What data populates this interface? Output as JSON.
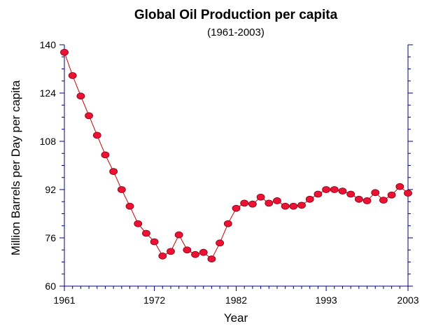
{
  "chart_data": {
    "type": "line",
    "title": "Global Oil Production per capita",
    "subtitle": "(1961-2003)",
    "xlabel": "Year",
    "ylabel": "Million Barrels per Day per capita",
    "xlim": [
      1961,
      2003
    ],
    "ylim": [
      60,
      140
    ],
    "x_tick_labels": [
      {
        "value": 1961,
        "label": "1961"
      },
      {
        "value": 1972,
        "label": "1972"
      },
      {
        "value": 1982,
        "label": "1982"
      },
      {
        "value": 1993,
        "label": "1993"
      },
      {
        "value": 2003,
        "label": "2003"
      }
    ],
    "y_tick_labels": [
      {
        "value": 60,
        "label": "60"
      },
      {
        "value": 76,
        "label": "76"
      },
      {
        "value": 92,
        "label": "92"
      },
      {
        "value": 108,
        "label": "108"
      },
      {
        "value": 124,
        "label": "124"
      },
      {
        "value": 140,
        "label": "140"
      }
    ],
    "grid": false,
    "series": [
      {
        "name": "Oil production per capita",
        "line_color": "#cc0000",
        "marker_color": "#ee1133",
        "x": [
          1961,
          1962,
          1963,
          1964,
          1965,
          1966,
          1967,
          1968,
          1969,
          1970,
          1971,
          1972,
          1973,
          1974,
          1975,
          1976,
          1977,
          1978,
          1979,
          1980,
          1981,
          1982,
          1983,
          1984,
          1985,
          1986,
          1987,
          1988,
          1989,
          1990,
          1991,
          1992,
          1993,
          1994,
          1995,
          1996,
          1997,
          1998,
          1999,
          2000,
          2001,
          2002,
          2003
        ],
        "values": [
          137.5,
          129.8,
          123.0,
          116.5,
          110.0,
          103.5,
          98.0,
          92.0,
          86.5,
          80.7,
          77.5,
          74.7,
          70.0,
          71.5,
          77.0,
          72.0,
          70.5,
          71.2,
          69.0,
          74.3,
          80.7,
          85.8,
          87.5,
          87.2,
          89.5,
          87.5,
          88.3,
          86.5,
          86.5,
          86.8,
          88.8,
          90.5,
          92.0,
          92.0,
          91.5,
          90.5,
          88.8,
          88.3,
          91.0,
          88.5,
          90.2,
          93.0,
          90.8
        ]
      }
    ]
  }
}
